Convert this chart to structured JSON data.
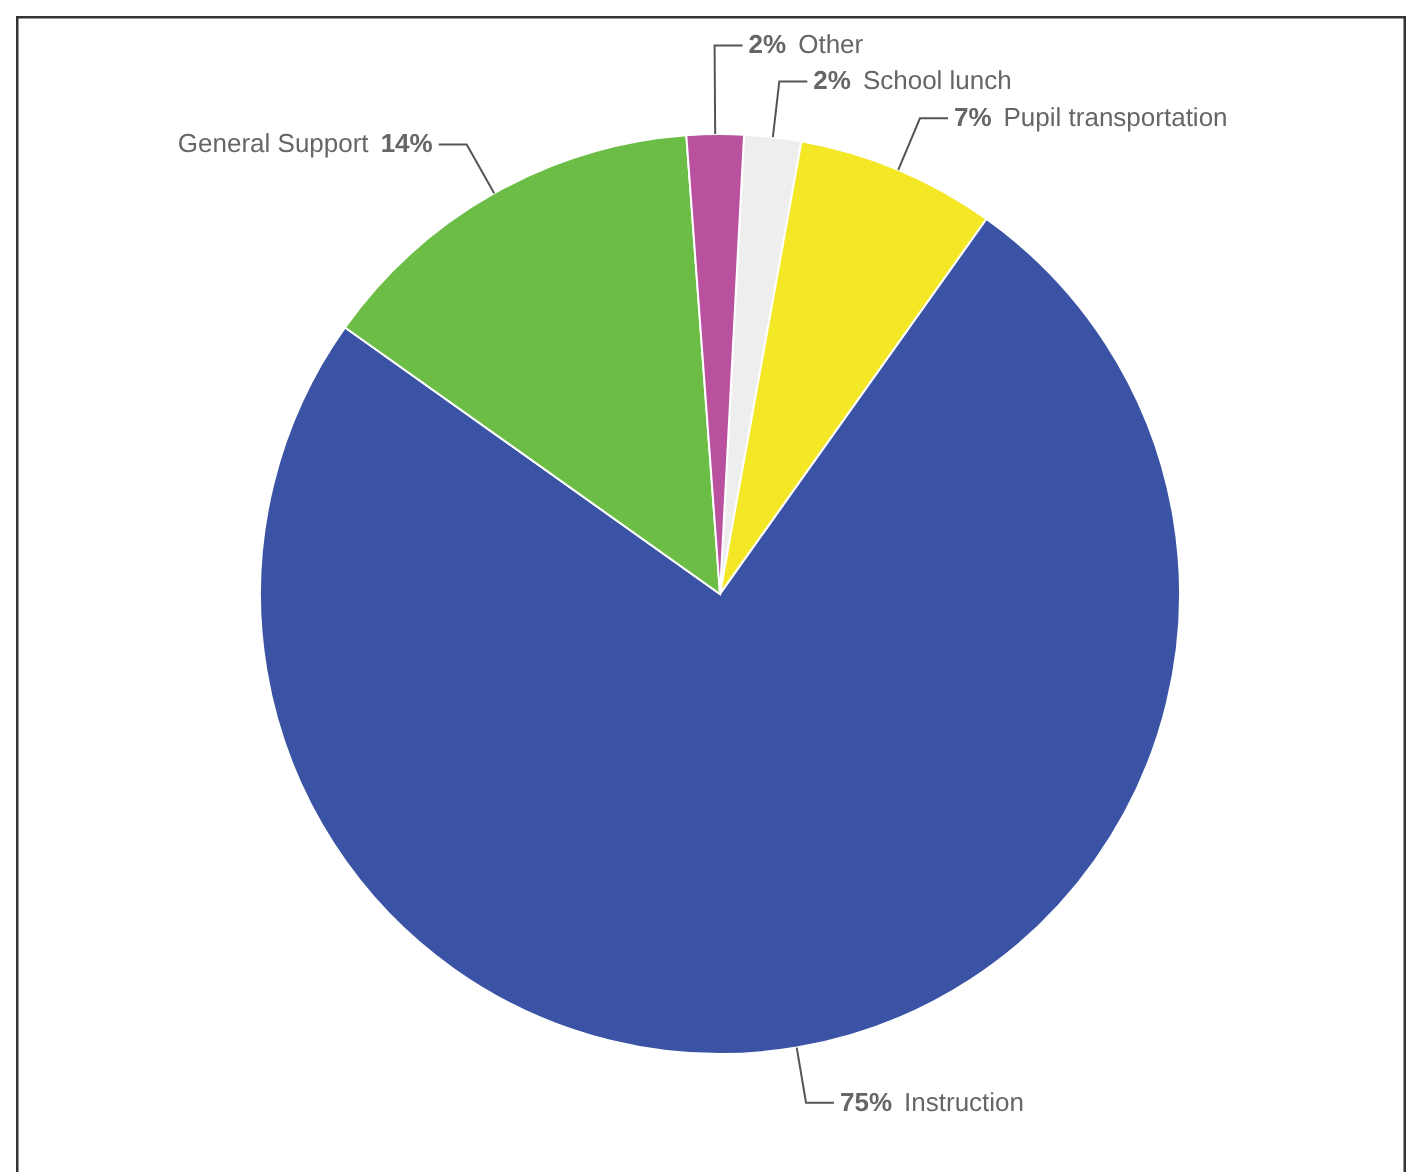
{
  "chart_data": {
    "type": "pie",
    "categories": [
      "School lunch",
      "Pupil transportation",
      "Instruction",
      "General Support",
      "Other"
    ],
    "values": [
      2,
      7,
      75,
      14,
      2
    ],
    "colors": [
      "#eeeeee",
      "#f4e726",
      "#3b53a4",
      "#6cbd45",
      "#b9519e"
    ],
    "value_labels": [
      "2%",
      "7%",
      "75%",
      "14%",
      "2%"
    ],
    "legend": false
  }
}
